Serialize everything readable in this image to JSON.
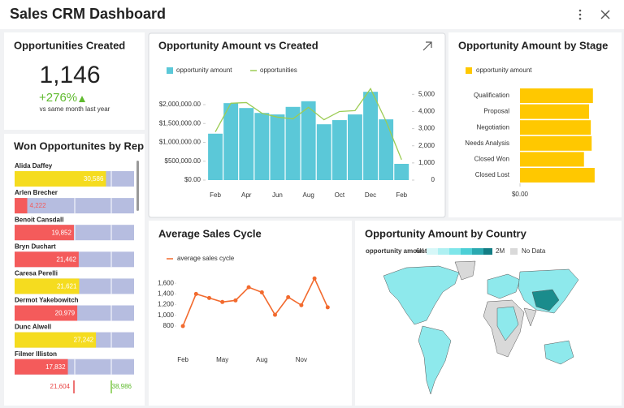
{
  "header": {
    "title": "Sales CRM Dashboard"
  },
  "kpi": {
    "title": "Opportunities Created",
    "value": 1146,
    "value_label": "1,146",
    "change": "+276%",
    "subtitle": "vs same month last year"
  },
  "chart_data": [
    {
      "type": "table",
      "title": "Won Opportunites by Rep",
      "categories": [
        "Alida Daffey",
        "Arlen Brecher",
        "Benoit Cansdall",
        "Bryn Duchart",
        "Caresa Perelli",
        "Dermot Yakebowitch",
        "Dunc Alwell",
        "Filmer Illiston"
      ],
      "values": [
        30586,
        4222,
        19852,
        21462,
        21621,
        20979,
        27242,
        17832
      ],
      "value_labels": [
        "30,586",
        "4,222",
        "19,852",
        "21,462",
        "21,621",
        "20,979",
        "27,242",
        "17,832"
      ],
      "colors": [
        "#f5dc1f",
        "#f45b5b",
        "#f45b5b",
        "#f45b5b",
        "#f5dc1f",
        "#f45b5b",
        "#f5dc1f",
        "#f45b5b"
      ],
      "xlim": [
        0,
        40000
      ],
      "footer": [
        "21,604",
        "38,986"
      ]
    },
    {
      "type": "combo",
      "title": "Opportunity Amount vs Created",
      "categories": [
        "Feb",
        null,
        "Apr",
        null,
        "Jun",
        null,
        "Aug",
        null,
        "Oct",
        null,
        "Dec",
        null,
        "Feb"
      ],
      "series": [
        {
          "name": "opportunity amount",
          "type": "bar",
          "color": "#5bc8d8",
          "values": [
            1230000,
            2040000,
            1910000,
            1780000,
            1740000,
            1940000,
            2090000,
            1480000,
            1590000,
            1740000,
            2340000,
            1610000,
            430000
          ]
        },
        {
          "name": "opportunities",
          "type": "line",
          "axis": "y2",
          "color": "#9ccc54",
          "values": [
            2810,
            4480,
            4520,
            3900,
            3670,
            3570,
            4240,
            3520,
            4000,
            4050,
            5330,
            3430,
            1190
          ]
        }
      ],
      "ylim": [
        0,
        2500000
      ],
      "yticks": [
        {
          "value": 0,
          "label": "$0.00"
        },
        {
          "value": 500000,
          "label": "$500,000.00"
        },
        {
          "value": 1000000,
          "label": "$1,000,000.00"
        },
        {
          "value": 1500000,
          "label": "$1,500,000.00"
        },
        {
          "value": 2000000,
          "label": "$2,000,000.00"
        }
      ],
      "y2lim": [
        0,
        5500
      ],
      "y2ticks": [
        0,
        {
          "value": 1000,
          "label": "1,000"
        },
        {
          "value": 2000,
          "label": "2,000"
        },
        {
          "value": 3000,
          "label": "3,000"
        },
        {
          "value": 4000,
          "label": "4,000"
        },
        {
          "value": 5000,
          "label": "5,000"
        }
      ]
    },
    {
      "type": "hbar",
      "title": "Opportunity Amount by Stage",
      "categories": [
        "Qualification",
        "Proposal",
        "Negotiation",
        "Needs Analysis",
        "Closed Won",
        "Closed Lost"
      ],
      "series": [
        {
          "name": "opportunity amount",
          "color": "#ffc800",
          "values": [
            1710000,
            1620000,
            1660000,
            1680000,
            1500000,
            1750000
          ]
        }
      ],
      "xlim": [
        0,
        2000000
      ],
      "xticks": [
        {
          "value": 0,
          "label": "$0.00"
        }
      ]
    },
    {
      "type": "line",
      "title": "Average Sales Cycle",
      "categories": [
        "Feb",
        null,
        null,
        "May",
        null,
        null,
        "Aug",
        null,
        null,
        "Nov",
        null,
        null
      ],
      "series": [
        {
          "name": "average sales cycle",
          "color": "#f26a2e",
          "markers": true,
          "values": [
            800,
            1400,
            1325,
            1250,
            1280,
            1525,
            1430,
            1010,
            1340,
            1190,
            1690,
            1150
          ]
        }
      ],
      "ylim": [
        700,
        1750
      ],
      "yticks": [
        {
          "value": 800,
          "label": "800"
        },
        {
          "value": 1000,
          "label": "1,000"
        },
        {
          "value": 1200,
          "label": "1,200"
        },
        {
          "value": 1400,
          "label": "1,400"
        },
        {
          "value": 1600,
          "label": "1,600"
        }
      ]
    }
  ],
  "map": {
    "title": "Opportunity Amount by Country",
    "legend_label": "opportunity amount:",
    "min_label": "6K",
    "max_label": "2M",
    "no_data_label": "No Data"
  }
}
